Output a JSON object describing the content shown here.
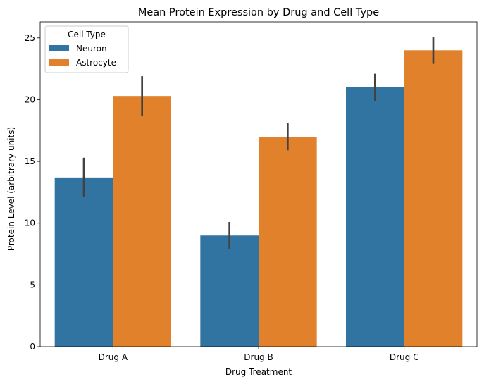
{
  "chart_data": {
    "type": "bar",
    "title": "Mean Protein Expression by Drug and Cell Type",
    "xlabel": "Drug Treatment",
    "ylabel": "Protein Level (arbitrary units)",
    "categories": [
      "Drug A",
      "Drug B",
      "Drug C"
    ],
    "ylim": [
      0,
      26.3
    ],
    "yticks": [
      0,
      5,
      10,
      15,
      20,
      25
    ],
    "legend": {
      "title": "Cell Type",
      "placement": "top-left"
    },
    "grid": false,
    "series": [
      {
        "name": "Neuron",
        "color": "#3274a1",
        "values": [
          13.7,
          9.0,
          21.0
        ],
        "err_low": [
          12.1,
          7.9,
          19.9
        ],
        "err_high": [
          15.3,
          10.1,
          22.1
        ]
      },
      {
        "name": "Astrocyte",
        "color": "#e1812c",
        "values": [
          20.3,
          17.0,
          24.0
        ],
        "err_low": [
          18.7,
          15.9,
          22.9
        ],
        "err_high": [
          21.9,
          18.1,
          25.1
        ]
      }
    ]
  }
}
